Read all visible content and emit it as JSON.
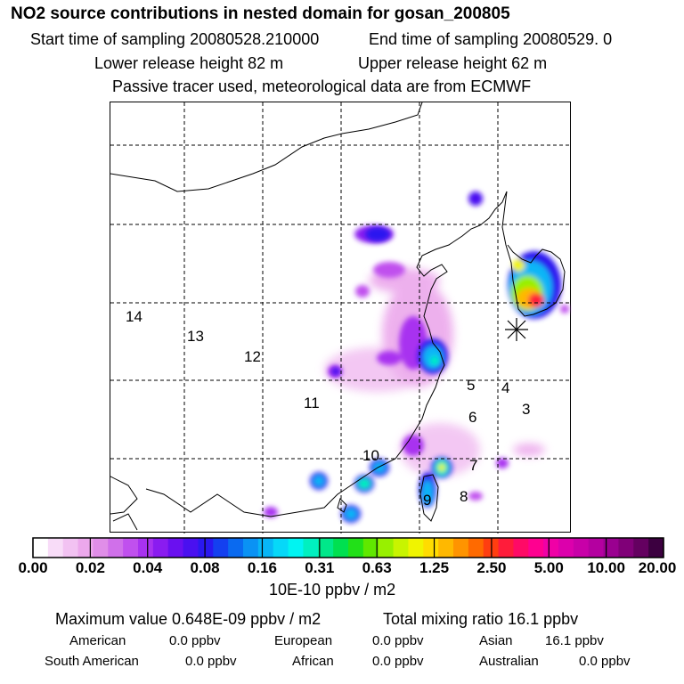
{
  "title": "NO2 source contributions in nested domain for gosan_200805",
  "sampling": {
    "start": "Start time of sampling 20080528.210000",
    "end": "End time of sampling 20080529.     0"
  },
  "release": {
    "lower": "Lower release height   82 m",
    "upper": "Upper release height   62 m"
  },
  "note": "Passive tracer used, meteorological data are from ECMWF",
  "chart_data": {
    "type": "heatmap",
    "title": "NO2 source contributions in nested domain for gosan_200805",
    "region_labels": [
      "14",
      "13",
      "12",
      "11",
      "10",
      "9",
      "8",
      "7",
      "6",
      "5",
      "4",
      "3"
    ],
    "colorbar": {
      "tick_labels": [
        "0.00",
        "0.02",
        "0.04",
        "0.08",
        "0.16",
        "0.31",
        "0.63",
        "1.25",
        "2.50",
        "5.00",
        "10.00",
        "20.00"
      ],
      "units": "10E-10 ppbv / m2",
      "colors": [
        "#ffffff",
        "#f8dcf8",
        "#f2c2f2",
        "#eca8ec",
        "#e08ee8",
        "#d070ea",
        "#c050ee",
        "#a832f0",
        "#8a1cf0",
        "#6a10f0",
        "#4a10f0",
        "#2a18f0",
        "#1440f0",
        "#0a6af0",
        "#0a92f4",
        "#08b6f6",
        "#06d8f8",
        "#00f4f2",
        "#00f0c0",
        "#00e88a",
        "#00e050",
        "#22e018",
        "#60e800",
        "#98f000",
        "#c8f400",
        "#f0f400",
        "#ffdc00",
        "#ffb800",
        "#ff9400",
        "#ff6a00",
        "#ff3e10",
        "#ff1c3a",
        "#ff0a66",
        "#ff0090",
        "#f000a6",
        "#dc00ac",
        "#c800a8",
        "#b400a0",
        "#9a0090",
        "#800078",
        "#640060",
        "#3c0040"
      ]
    },
    "legend_region": "bottom"
  },
  "stats": {
    "max_value": "Maximum value  0.648E-09 ppbv / m2",
    "total_mixing": "Total mixing ratio       16.1 ppbv"
  },
  "contributions": [
    {
      "name": "American",
      "value": "0.0 ppbv"
    },
    {
      "name": "European",
      "value": "0.0 ppbv"
    },
    {
      "name": "Asian",
      "value": "16.1 ppbv"
    },
    {
      "name": "South American",
      "value": "0.0 ppbv"
    },
    {
      "name": "African",
      "value": "0.0 ppbv"
    },
    {
      "name": "Australian",
      "value": "0.0 ppbv"
    }
  ]
}
